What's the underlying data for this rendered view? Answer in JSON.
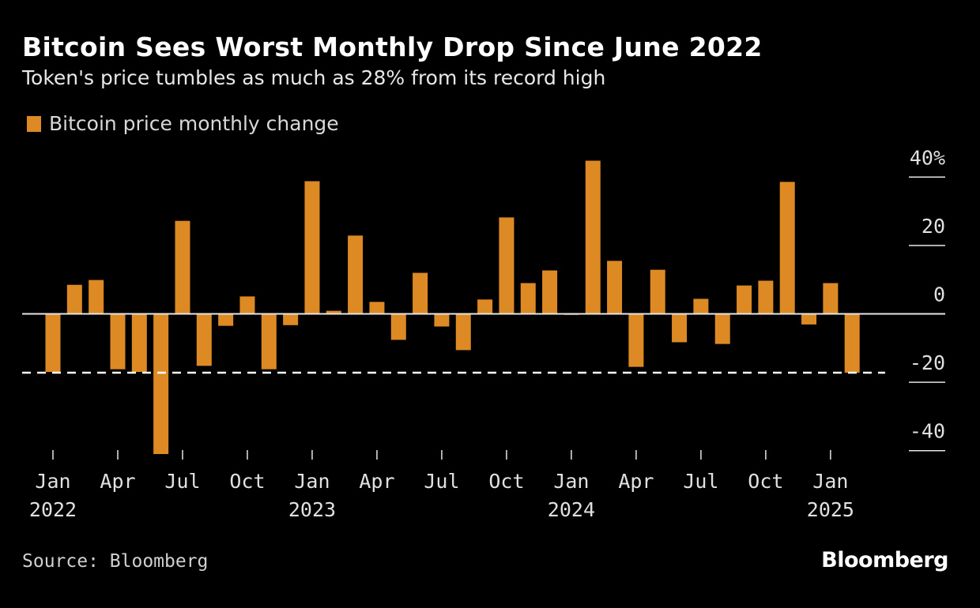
{
  "title": "Bitcoin Sees Worst Monthly Drop Since June 2022",
  "subtitle": "Token's price tumbles as much as 28% from its record high",
  "source": "Source: Bloomberg",
  "logo": "Bloomberg",
  "chart_data": {
    "type": "bar",
    "legend": [
      {
        "label": "Bitcoin price monthly change",
        "color": "#de8a24"
      }
    ],
    "legend_placement": "top-left",
    "series": [
      {
        "name": "Bitcoin price monthly change",
        "color": "#de8a24",
        "x": [
          "2022-01",
          "2022-02",
          "2022-03",
          "2022-04",
          "2022-05",
          "2022-06",
          "2022-07",
          "2022-08",
          "2022-09",
          "2022-10",
          "2022-11",
          "2022-12",
          "2023-01",
          "2023-02",
          "2023-03",
          "2023-04",
          "2023-05",
          "2023-06",
          "2023-07",
          "2023-08",
          "2023-09",
          "2023-10",
          "2023-11",
          "2023-12",
          "2024-01",
          "2024-02",
          "2024-03",
          "2024-04",
          "2024-05",
          "2024-06",
          "2024-07",
          "2024-08",
          "2024-09",
          "2024-10",
          "2024-11",
          "2024-12",
          "2025-01",
          "2025-02"
        ],
        "values": [
          -17,
          8.5,
          9.9,
          -16.2,
          -17,
          -41,
          27.2,
          -15.2,
          -3.5,
          5.1,
          -16.2,
          -3.3,
          38.8,
          0.9,
          22.9,
          3.5,
          -7.6,
          12,
          -3.7,
          -10.6,
          4.2,
          28.2,
          9,
          12.7,
          -0.3,
          44.8,
          15.5,
          -15.5,
          12.9,
          -8.3,
          4.4,
          -8.8,
          8.3,
          9.7,
          38.6,
          -3.1,
          9,
          -17.2
        ]
      }
    ],
    "reference_line": {
      "value": -17.2,
      "style": "dashed",
      "color": "#ffffff"
    },
    "x_ticks": [
      {
        "x": "2022-01",
        "label": "Jan",
        "year": "2022"
      },
      {
        "x": "2022-04",
        "label": "Apr",
        "year": ""
      },
      {
        "x": "2022-07",
        "label": "Jul",
        "year": ""
      },
      {
        "x": "2022-10",
        "label": "Oct",
        "year": ""
      },
      {
        "x": "2023-01",
        "label": "Jan",
        "year": "2023"
      },
      {
        "x": "2023-04",
        "label": "Apr",
        "year": ""
      },
      {
        "x": "2023-07",
        "label": "Jul",
        "year": ""
      },
      {
        "x": "2023-10",
        "label": "Oct",
        "year": ""
      },
      {
        "x": "2024-01",
        "label": "Jan",
        "year": "2024"
      },
      {
        "x": "2024-04",
        "label": "Apr",
        "year": ""
      },
      {
        "x": "2024-07",
        "label": "Jul",
        "year": ""
      },
      {
        "x": "2024-10",
        "label": "Oct",
        "year": ""
      },
      {
        "x": "2025-01",
        "label": "Jan",
        "year": "2025"
      }
    ],
    "y_ticks": [
      {
        "value": 40,
        "label": "40%"
      },
      {
        "value": 20,
        "label": "20"
      },
      {
        "value": 0,
        "label": "0"
      },
      {
        "value": -20,
        "label": "-20"
      },
      {
        "value": -40,
        "label": "-40"
      }
    ],
    "ylim": [
      -42,
      45
    ],
    "y_axis_position": "right",
    "grid": false
  }
}
